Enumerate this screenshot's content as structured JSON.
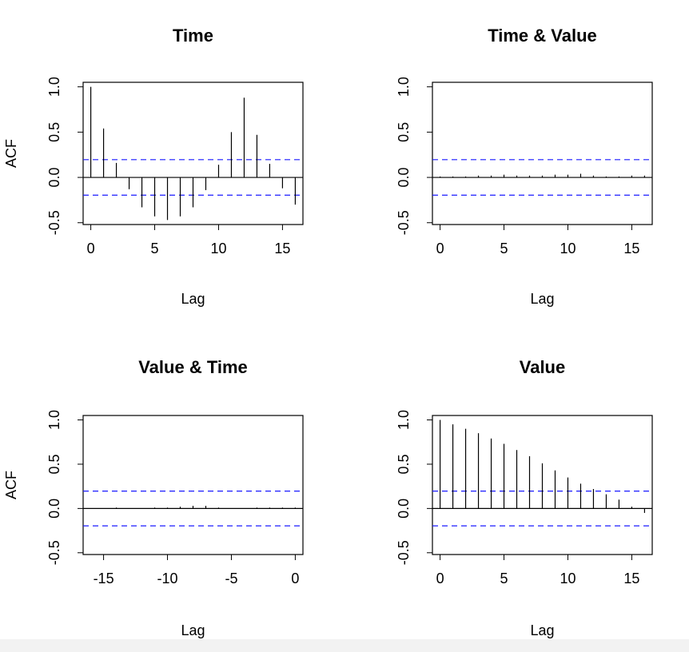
{
  "colors": {
    "ci": "#1a1aff",
    "spike": "#000000",
    "background": "#ffffff",
    "bottom_strip": "#f2f2f2"
  },
  "chart_data": [
    {
      "type": "bar",
      "title": "Time",
      "xlabel": "Lag",
      "ylabel": "ACF",
      "x": [
        0,
        1,
        2,
        3,
        4,
        5,
        6,
        7,
        8,
        9,
        10,
        11,
        12,
        13,
        14,
        15,
        16
      ],
      "values": [
        1.0,
        0.54,
        0.16,
        -0.13,
        -0.33,
        -0.43,
        -0.47,
        -0.43,
        -0.33,
        -0.14,
        0.14,
        0.5,
        0.88,
        0.47,
        0.15,
        -0.12,
        -0.3
      ],
      "ci": [
        0.196,
        -0.196
      ],
      "xlim": [
        -0.6,
        16.6
      ],
      "ylim": [
        -0.52,
        1.05
      ],
      "xticks": [
        0,
        5,
        10,
        15
      ],
      "xtick_labels": [
        "0",
        "5",
        "10",
        "15"
      ],
      "yticks": [
        -0.5,
        0.0,
        0.5,
        1.0
      ],
      "ytick_labels": [
        "-0.5",
        "0.0",
        "0.5",
        "1.0"
      ]
    },
    {
      "type": "bar",
      "title": "Time & Value",
      "xlabel": "Lag",
      "ylabel": "",
      "x": [
        0,
        1,
        2,
        3,
        4,
        5,
        6,
        7,
        8,
        9,
        10,
        11,
        12,
        13,
        14,
        15,
        16
      ],
      "values": [
        0.01,
        0.01,
        0.01,
        0.02,
        0.02,
        0.03,
        0.02,
        0.02,
        0.02,
        0.03,
        0.03,
        0.04,
        0.02,
        0.01,
        0.01,
        0.02,
        0.02
      ],
      "ci": [
        0.196,
        -0.196
      ],
      "xlim": [
        -0.6,
        16.6
      ],
      "ylim": [
        -0.52,
        1.05
      ],
      "xticks": [
        0,
        5,
        10,
        15
      ],
      "xtick_labels": [
        "0",
        "5",
        "10",
        "15"
      ],
      "yticks": [
        -0.5,
        0.0,
        0.5,
        1.0
      ],
      "ytick_labels": [
        "-0.5",
        "0.0",
        "0.5",
        "1.0"
      ]
    },
    {
      "type": "bar",
      "title": "Value & Time",
      "xlabel": "Lag",
      "ylabel": "ACF",
      "x": [
        -16,
        -15,
        -14,
        -13,
        -12,
        -11,
        -10,
        -9,
        -8,
        -7,
        -6,
        -5,
        -4,
        -3,
        -2,
        -1,
        0
      ],
      "values": [
        0.0,
        0.0,
        0.01,
        0.0,
        0.0,
        0.01,
        0.01,
        0.02,
        0.03,
        0.03,
        0.01,
        0.0,
        0.0,
        0.01,
        0.01,
        0.01,
        0.01
      ],
      "ci": [
        0.196,
        -0.196
      ],
      "xlim": [
        -16.6,
        0.6
      ],
      "ylim": [
        -0.52,
        1.05
      ],
      "xticks": [
        -15,
        -10,
        -5,
        0
      ],
      "xtick_labels": [
        "-15",
        "-10",
        "-5",
        "0"
      ],
      "yticks": [
        -0.5,
        0.0,
        0.5,
        1.0
      ],
      "ytick_labels": [
        "-0.5",
        "0.0",
        "0.5",
        "1.0"
      ]
    },
    {
      "type": "bar",
      "title": "Value",
      "xlabel": "Lag",
      "ylabel": "",
      "x": [
        0,
        1,
        2,
        3,
        4,
        5,
        6,
        7,
        8,
        9,
        10,
        11,
        12,
        13,
        14,
        15,
        16
      ],
      "values": [
        1.0,
        0.95,
        0.9,
        0.85,
        0.79,
        0.73,
        0.66,
        0.59,
        0.51,
        0.43,
        0.35,
        0.28,
        0.22,
        0.16,
        0.1,
        0.02,
        -0.05
      ],
      "ci": [
        0.196,
        -0.196
      ],
      "xlim": [
        -0.6,
        16.6
      ],
      "ylim": [
        -0.52,
        1.05
      ],
      "xticks": [
        0,
        5,
        10,
        15
      ],
      "xtick_labels": [
        "0",
        "5",
        "10",
        "15"
      ],
      "yticks": [
        -0.5,
        0.0,
        0.5,
        1.0
      ],
      "ytick_labels": [
        "-0.5",
        "0.0",
        "0.5",
        "1.0"
      ]
    }
  ]
}
